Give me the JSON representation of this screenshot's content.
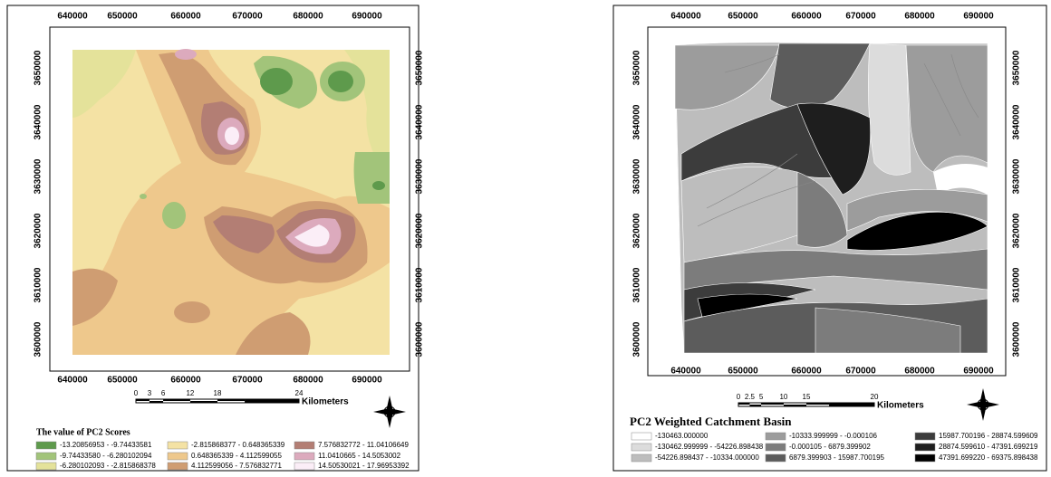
{
  "panels": [
    {
      "x_labels": [
        640000,
        650000,
        660000,
        670000,
        680000,
        690000
      ],
      "y_labels": [
        3650000,
        3640000,
        3630000,
        3620000,
        3610000,
        3600000
      ],
      "scale_labels": [
        0,
        3,
        6,
        12,
        18,
        24
      ],
      "scale_unit": "Kilometers",
      "legend_title": "The value of PC2 Scores",
      "legend": [
        {
          "label": "-13.20856953 - -9.74433581",
          "color": "#5e9a4c"
        },
        {
          "label": "-9.74433580 - -6.280102094",
          "color": "#a2c47a"
        },
        {
          "label": "-6.280102093 - -2.815868378",
          "color": "#e4e29a"
        },
        {
          "label": "-2.815868377 - 0.648365339",
          "color": "#f4e2a4"
        },
        {
          "label": "0.648365339 - 4.112599055",
          "color": "#eec88c"
        },
        {
          "label": "4.112599056 - 7.576832771",
          "color": "#cf9d72"
        },
        {
          "label": "7.576832772 - 11.04106649",
          "color": "#b37e74"
        },
        {
          "label": "11.0410665 - 14.5053002",
          "color": "#dcaabd"
        },
        {
          "label": "14.50530021 - 17.96953392",
          "color": "#fbeef7"
        }
      ]
    },
    {
      "x_labels": [
        640000,
        650000,
        660000,
        670000,
        680000,
        690000
      ],
      "y_labels": [
        3650000,
        3640000,
        3630000,
        3620000,
        3610000,
        3600000
      ],
      "scale_labels": [
        0,
        2.5,
        5,
        10,
        15,
        20
      ],
      "scale_unit": "Kilometers",
      "legend_title": "PC2 Weighted Catchment Basin",
      "legend": [
        {
          "label": "-130463.000000",
          "color": "#ffffff"
        },
        {
          "label": "-130462.999999 - -54226.898438",
          "color": "#dcdcdc"
        },
        {
          "label": "-54226.898437 - -10334.000000",
          "color": "#bdbdbd"
        },
        {
          "label": "-10333.999999 - -0.000106",
          "color": "#9c9c9c"
        },
        {
          "label": "-0.000105 - 6879.399902",
          "color": "#7c7c7c"
        },
        {
          "label": "6879.399903 - 15987.700195",
          "color": "#5c5c5c"
        },
        {
          "label": "15987.700196 - 28874.599609",
          "color": "#3c3c3c"
        },
        {
          "label": "28874.599610 - 47391.699219",
          "color": "#1e1e1e"
        },
        {
          "label": "47391.699220 - 69375.898438",
          "color": "#000000"
        }
      ]
    }
  ]
}
